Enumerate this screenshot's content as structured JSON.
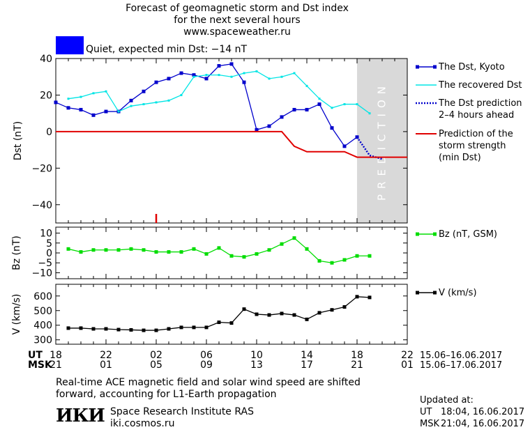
{
  "header": {
    "title_line1": "Forecast of geomagnetic storm and Dst index",
    "title_line2": "for the next several hours",
    "site": "www.spaceweather.ru",
    "status_text": "Quiet, expected min Dst: −14 nT",
    "status_color": "#0000FF"
  },
  "footer": {
    "note_line1": "Real-time ACE magnetic field and solar wind speed are shifted",
    "note_line2": "forward, accounting for L1-Earth propagation",
    "logo_text": "ИКИ",
    "institute": "Space Research Institute RAS",
    "institute_site": "iki.cosmos.ru",
    "updated_label": "Updated at:",
    "updated_ut_label": "UT",
    "updated_ut": "18:04, 16.06.2017",
    "updated_msk_label": "MSK",
    "updated_msk": "21:04, 16.06.2017"
  },
  "chart_data": {
    "type": "line",
    "x_axis": {
      "ut_label": "UT",
      "msk_label": "MSK",
      "ut_ticks": [
        "18",
        "22",
        "02",
        "06",
        "10",
        "14",
        "18",
        "22"
      ],
      "msk_ticks": [
        "21",
        "01",
        "05",
        "09",
        "13",
        "17",
        "21",
        "01"
      ],
      "ut_dates": "15.06–16.06.2017",
      "msk_dates": "15.06–17.06.2017",
      "range_hours_from_start": [
        0,
        28
      ]
    },
    "prediction_label": "PREDICTION",
    "prediction_window_hours": [
      24,
      28
    ],
    "storm_marker_hour": 8,
    "panels": [
      {
        "id": "dst",
        "ylabel": "Dst (nT)",
        "ylim": [
          -50,
          40
        ],
        "yticks": [
          "40",
          "20",
          "0",
          "−20",
          "−40"
        ],
        "yvals": [
          40,
          20,
          0,
          -20,
          -40
        ],
        "series": [
          {
            "name": "The Dst, Kyoto",
            "color": "#0000CC",
            "style": "line-square",
            "x": [
              0,
              1,
              2,
              3,
              4,
              5,
              6,
              7,
              8,
              9,
              10,
              11,
              12,
              13,
              14,
              15,
              16,
              17,
              18,
              19,
              20,
              21,
              22,
              23,
              24
            ],
            "y": [
              16,
              13,
              12,
              9,
              11,
              11,
              17,
              22,
              27,
              29,
              32,
              31,
              29,
              36,
              37,
              27,
              1,
              3,
              8,
              12,
              12,
              15,
              2,
              -8,
              -3
            ]
          },
          {
            "name": "The recovered Dst",
            "color": "#00E5E5",
            "style": "line",
            "x": [
              1,
              2,
              3,
              4,
              5,
              6,
              7,
              8,
              9,
              10,
              11,
              12,
              13,
              14,
              15,
              16,
              17,
              18,
              19,
              20,
              21,
              22,
              23,
              24,
              25
            ],
            "y": [
              18,
              19,
              21,
              22,
              11,
              14,
              15,
              16,
              17,
              20,
              30,
              31,
              31,
              30,
              32,
              33,
              29,
              30,
              32,
              25,
              18,
              13,
              15,
              15,
              10
            ]
          },
          {
            "name": "The Dst prediction\n2–4 hours ahead",
            "color": "#0000CC",
            "style": "dotted",
            "x": [
              24,
              25,
              26
            ],
            "y": [
              -3,
              -13,
              -15
            ]
          },
          {
            "name": "Prediction of the\nstorm strength\n(min Dst)",
            "color": "#E00000",
            "style": "line",
            "x": [
              0,
              18,
              19,
              20,
              23,
              24,
              28
            ],
            "y": [
              0,
              0,
              -8,
              -11,
              -11,
              -14,
              -14
            ]
          }
        ]
      },
      {
        "id": "bz",
        "ylabel": "Bz (nT)",
        "ylim": [
          -13,
          13
        ],
        "yticks": [
          "10",
          "5",
          "0",
          "−5",
          "−10"
        ],
        "yvals": [
          10,
          5,
          0,
          -5,
          -10
        ],
        "series": [
          {
            "name": "Bz (nT, GSM)",
            "color": "#00DD00",
            "style": "line-square",
            "x": [
              1,
              2,
              3,
              4,
              5,
              6,
              7,
              8,
              9,
              10,
              11,
              12,
              13,
              14,
              15,
              16,
              17,
              18,
              19,
              20,
              21,
              22,
              23,
              24,
              25
            ],
            "y": [
              2,
              0.5,
              1.5,
              1.5,
              1.5,
              2,
              1.5,
              0.5,
              0.5,
              0.5,
              2,
              -0.5,
              2.5,
              -1.5,
              -2,
              -0.5,
              1.5,
              4.5,
              7.5,
              2,
              -4,
              -5,
              -3.5,
              -1.5,
              -1.5
            ]
          }
        ]
      },
      {
        "id": "v",
        "ylabel": "V (km/s)",
        "ylim": [
          270,
          680
        ],
        "yticks": [
          "600",
          "500",
          "400",
          "300"
        ],
        "yvals": [
          600,
          500,
          400,
          300
        ],
        "series": [
          {
            "name": "V (km/s)",
            "color": "#000000",
            "style": "line-square",
            "x": [
              1,
              2,
              3,
              4,
              5,
              6,
              7,
              8,
              9,
              10,
              11,
              12,
              13,
              14,
              15,
              16,
              17,
              18,
              19,
              20,
              21,
              22,
              23,
              24,
              25
            ],
            "y": [
              380,
              380,
              375,
              375,
              370,
              368,
              365,
              365,
              375,
              385,
              385,
              385,
              420,
              415,
              510,
              475,
              470,
              480,
              470,
              440,
              485,
              505,
              525,
              595,
              590
            ]
          }
        ]
      }
    ]
  }
}
